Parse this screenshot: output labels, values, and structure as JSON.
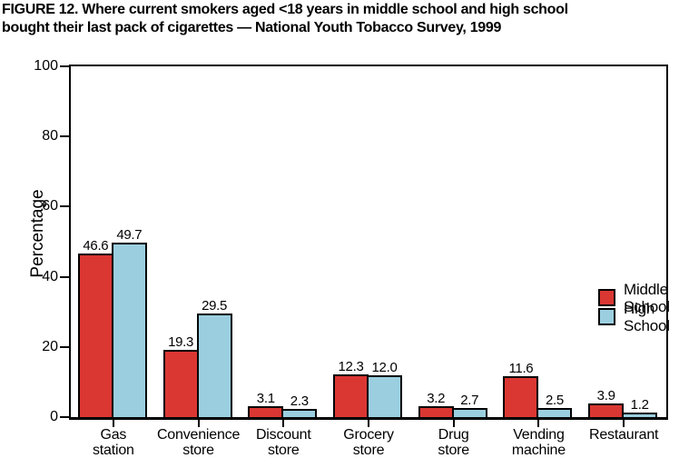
{
  "figure": {
    "title_lines": [
      "FIGURE 12. Where current smokers aged <18 years in middle school and high school",
      "bought their last pack of cigarettes — National Youth Tobacco Survey, 1999"
    ]
  },
  "chart_data": {
    "type": "bar",
    "title": "FIGURE 12. Where current smokers aged <18 years in middle school and high school bought their last pack of cigarettes — National Youth Tobacco Survey, 1999",
    "categories": [
      "Gas\nstation",
      "Convenience\nstore",
      "Discount\nstore",
      "Grocery\nstore",
      "Drug\nstore",
      "Vending\nmachine",
      "Restaurant"
    ],
    "series": [
      {
        "name": "Middle School",
        "color": "#DA3733",
        "values": [
          46.6,
          19.3,
          3.1,
          12.3,
          3.2,
          11.6,
          3.9
        ],
        "labels": [
          "46.6",
          "19.3",
          "3.1",
          "12.3",
          "3.2",
          "11.6",
          "3.9"
        ]
      },
      {
        "name": "High School",
        "color": "#9BCFE0",
        "values": [
          49.7,
          29.5,
          2.3,
          12.0,
          2.7,
          2.5,
          1.2
        ],
        "labels": [
          "49.7",
          "29.5",
          "2.3",
          "12.0",
          "2.7",
          "2.5",
          "1.2"
        ]
      }
    ],
    "xlabel": "",
    "ylabel": "Percentage",
    "ylim": [
      0,
      100
    ],
    "yticks": [
      0,
      20,
      40,
      60,
      80,
      100
    ],
    "grid": false,
    "legend_position": "middle-right",
    "bar_value_labels": true,
    "axis_color": "#000000",
    "background_color": "#FFFFFF"
  }
}
